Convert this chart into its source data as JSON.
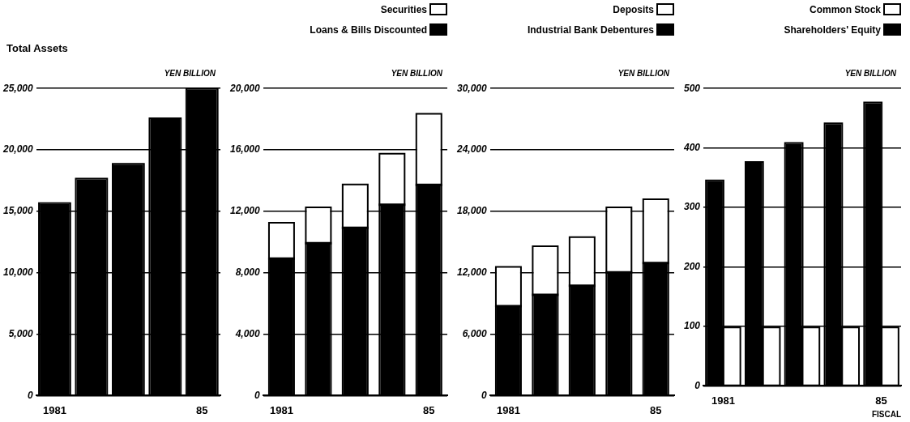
{
  "chart_data": [
    {
      "type": "bar",
      "title": "Total Assets",
      "ylabel": "YEN BILLION",
      "categories": [
        "1981",
        null,
        null,
        null,
        "85"
      ],
      "values": [
        15600,
        17600,
        18800,
        22500,
        24900
      ],
      "color": "#000000",
      "ylim": [
        0,
        25000
      ],
      "yticks": [
        {
          "value": 0,
          "label": "0"
        },
        {
          "value": 5000,
          "label": "5,000"
        },
        {
          "value": 10000,
          "label": "10,000"
        },
        {
          "value": 15000,
          "label": "15,000"
        },
        {
          "value": 20000,
          "label": "20,000"
        },
        {
          "value": 25000,
          "label": "25,000"
        }
      ],
      "grid": "y"
    },
    {
      "type": "bar",
      "ylabel": "YEN BILLION",
      "categories": [
        "1981",
        null,
        null,
        null,
        "85"
      ],
      "stacked": true,
      "legend": "top right",
      "series": [
        {
          "name": "Loans & Bills Discounted",
          "color": "#000000",
          "values": [
            8900,
            9900,
            10900,
            12400,
            13700
          ]
        },
        {
          "name": "Securities",
          "color": "#ffffff",
          "values": [
            2300,
            2300,
            2800,
            3300,
            4600
          ]
        }
      ],
      "ylim": [
        0,
        20000
      ],
      "yticks": [
        {
          "value": 0,
          "label": "0"
        },
        {
          "value": 4000,
          "label": "4,000"
        },
        {
          "value": 8000,
          "label": "8,000"
        },
        {
          "value": 12000,
          "label": "12,000"
        },
        {
          "value": 16000,
          "label": "16,000"
        },
        {
          "value": 20000,
          "label": "20,000"
        }
      ],
      "grid": "y"
    },
    {
      "type": "bar",
      "ylabel": "YEN BILLION",
      "categories": [
        "1981",
        null,
        null,
        null,
        "85"
      ],
      "stacked": true,
      "legend": "top right",
      "series": [
        {
          "name": "Industrial Bank Debentures",
          "color": "#000000",
          "values": [
            8700,
            9800,
            10700,
            12000,
            12900
          ]
        },
        {
          "name": "Deposits",
          "color": "#ffffff",
          "values": [
            3800,
            4700,
            4700,
            6300,
            6200
          ]
        }
      ],
      "ylim": [
        0,
        30000
      ],
      "yticks": [
        {
          "value": 0,
          "label": "0"
        },
        {
          "value": 6000,
          "label": "6,000"
        },
        {
          "value": 12000,
          "label": "12,000"
        },
        {
          "value": 18000,
          "label": "18,000"
        },
        {
          "value": 24000,
          "label": "24,000"
        },
        {
          "value": 30000,
          "label": "30,000"
        }
      ],
      "grid": "y"
    },
    {
      "type": "bar",
      "ylabel": "YEN BILLION",
      "xlabel": "FISCAL",
      "categories": [
        "1981",
        null,
        null,
        null,
        "85"
      ],
      "legend": "top right",
      "series": [
        {
          "name": "Shareholders' Equity",
          "color": "#000000",
          "values": [
            344,
            375,
            407,
            440,
            475
          ]
        },
        {
          "name": "Common Stock",
          "color": "#ffffff",
          "values": [
            97,
            97,
            97,
            97,
            97
          ]
        }
      ],
      "ylim": [
        0,
        500
      ],
      "yticks": [
        0,
        100,
        200,
        300,
        400,
        500
      ],
      "grid": "y"
    }
  ]
}
